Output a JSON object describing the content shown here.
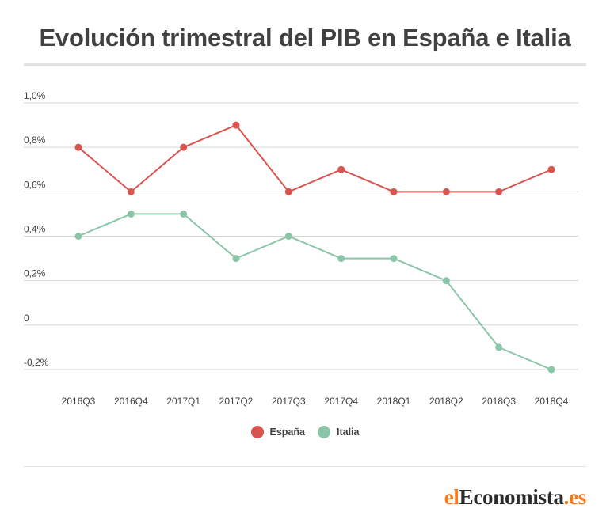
{
  "header": {
    "title": "Evolución trimestral del PIB en España e Italia"
  },
  "chart_data": {
    "type": "line",
    "title": "Evolución trimestral del PIB en España e Italia",
    "xlabel": "",
    "ylabel": "",
    "categories": [
      "2016Q3",
      "2016Q4",
      "2017Q1",
      "2017Q2",
      "2017Q3",
      "2017Q4",
      "2018Q1",
      "2018Q2",
      "2018Q3",
      "2018Q4"
    ],
    "yticks": [
      {
        "value": 1.0,
        "label": "1,0%"
      },
      {
        "value": 0.8,
        "label": "0,8%"
      },
      {
        "value": 0.6,
        "label": "0,6%"
      },
      {
        "value": 0.4,
        "label": "0,4%"
      },
      {
        "value": 0.2,
        "label": "0,2%"
      },
      {
        "value": 0.0,
        "label": "0"
      },
      {
        "value": -0.2,
        "label": "-0,2%"
      }
    ],
    "ylim": [
      -0.2,
      1.0
    ],
    "grid": true,
    "legend_position": "bottom-center",
    "series": [
      {
        "name": "España",
        "color": "#d9534f",
        "values": [
          0.8,
          0.6,
          0.8,
          0.9,
          0.6,
          0.7,
          0.6,
          0.6,
          0.6,
          0.7
        ]
      },
      {
        "name": "Italia",
        "color": "#8cc6a8",
        "values": [
          0.4,
          0.5,
          0.5,
          0.3,
          0.4,
          0.3,
          0.3,
          0.2,
          -0.1,
          -0.2
        ]
      }
    ]
  },
  "brand": {
    "logo_el": "el",
    "logo_main": "Economista",
    "logo_tld": ".es"
  }
}
